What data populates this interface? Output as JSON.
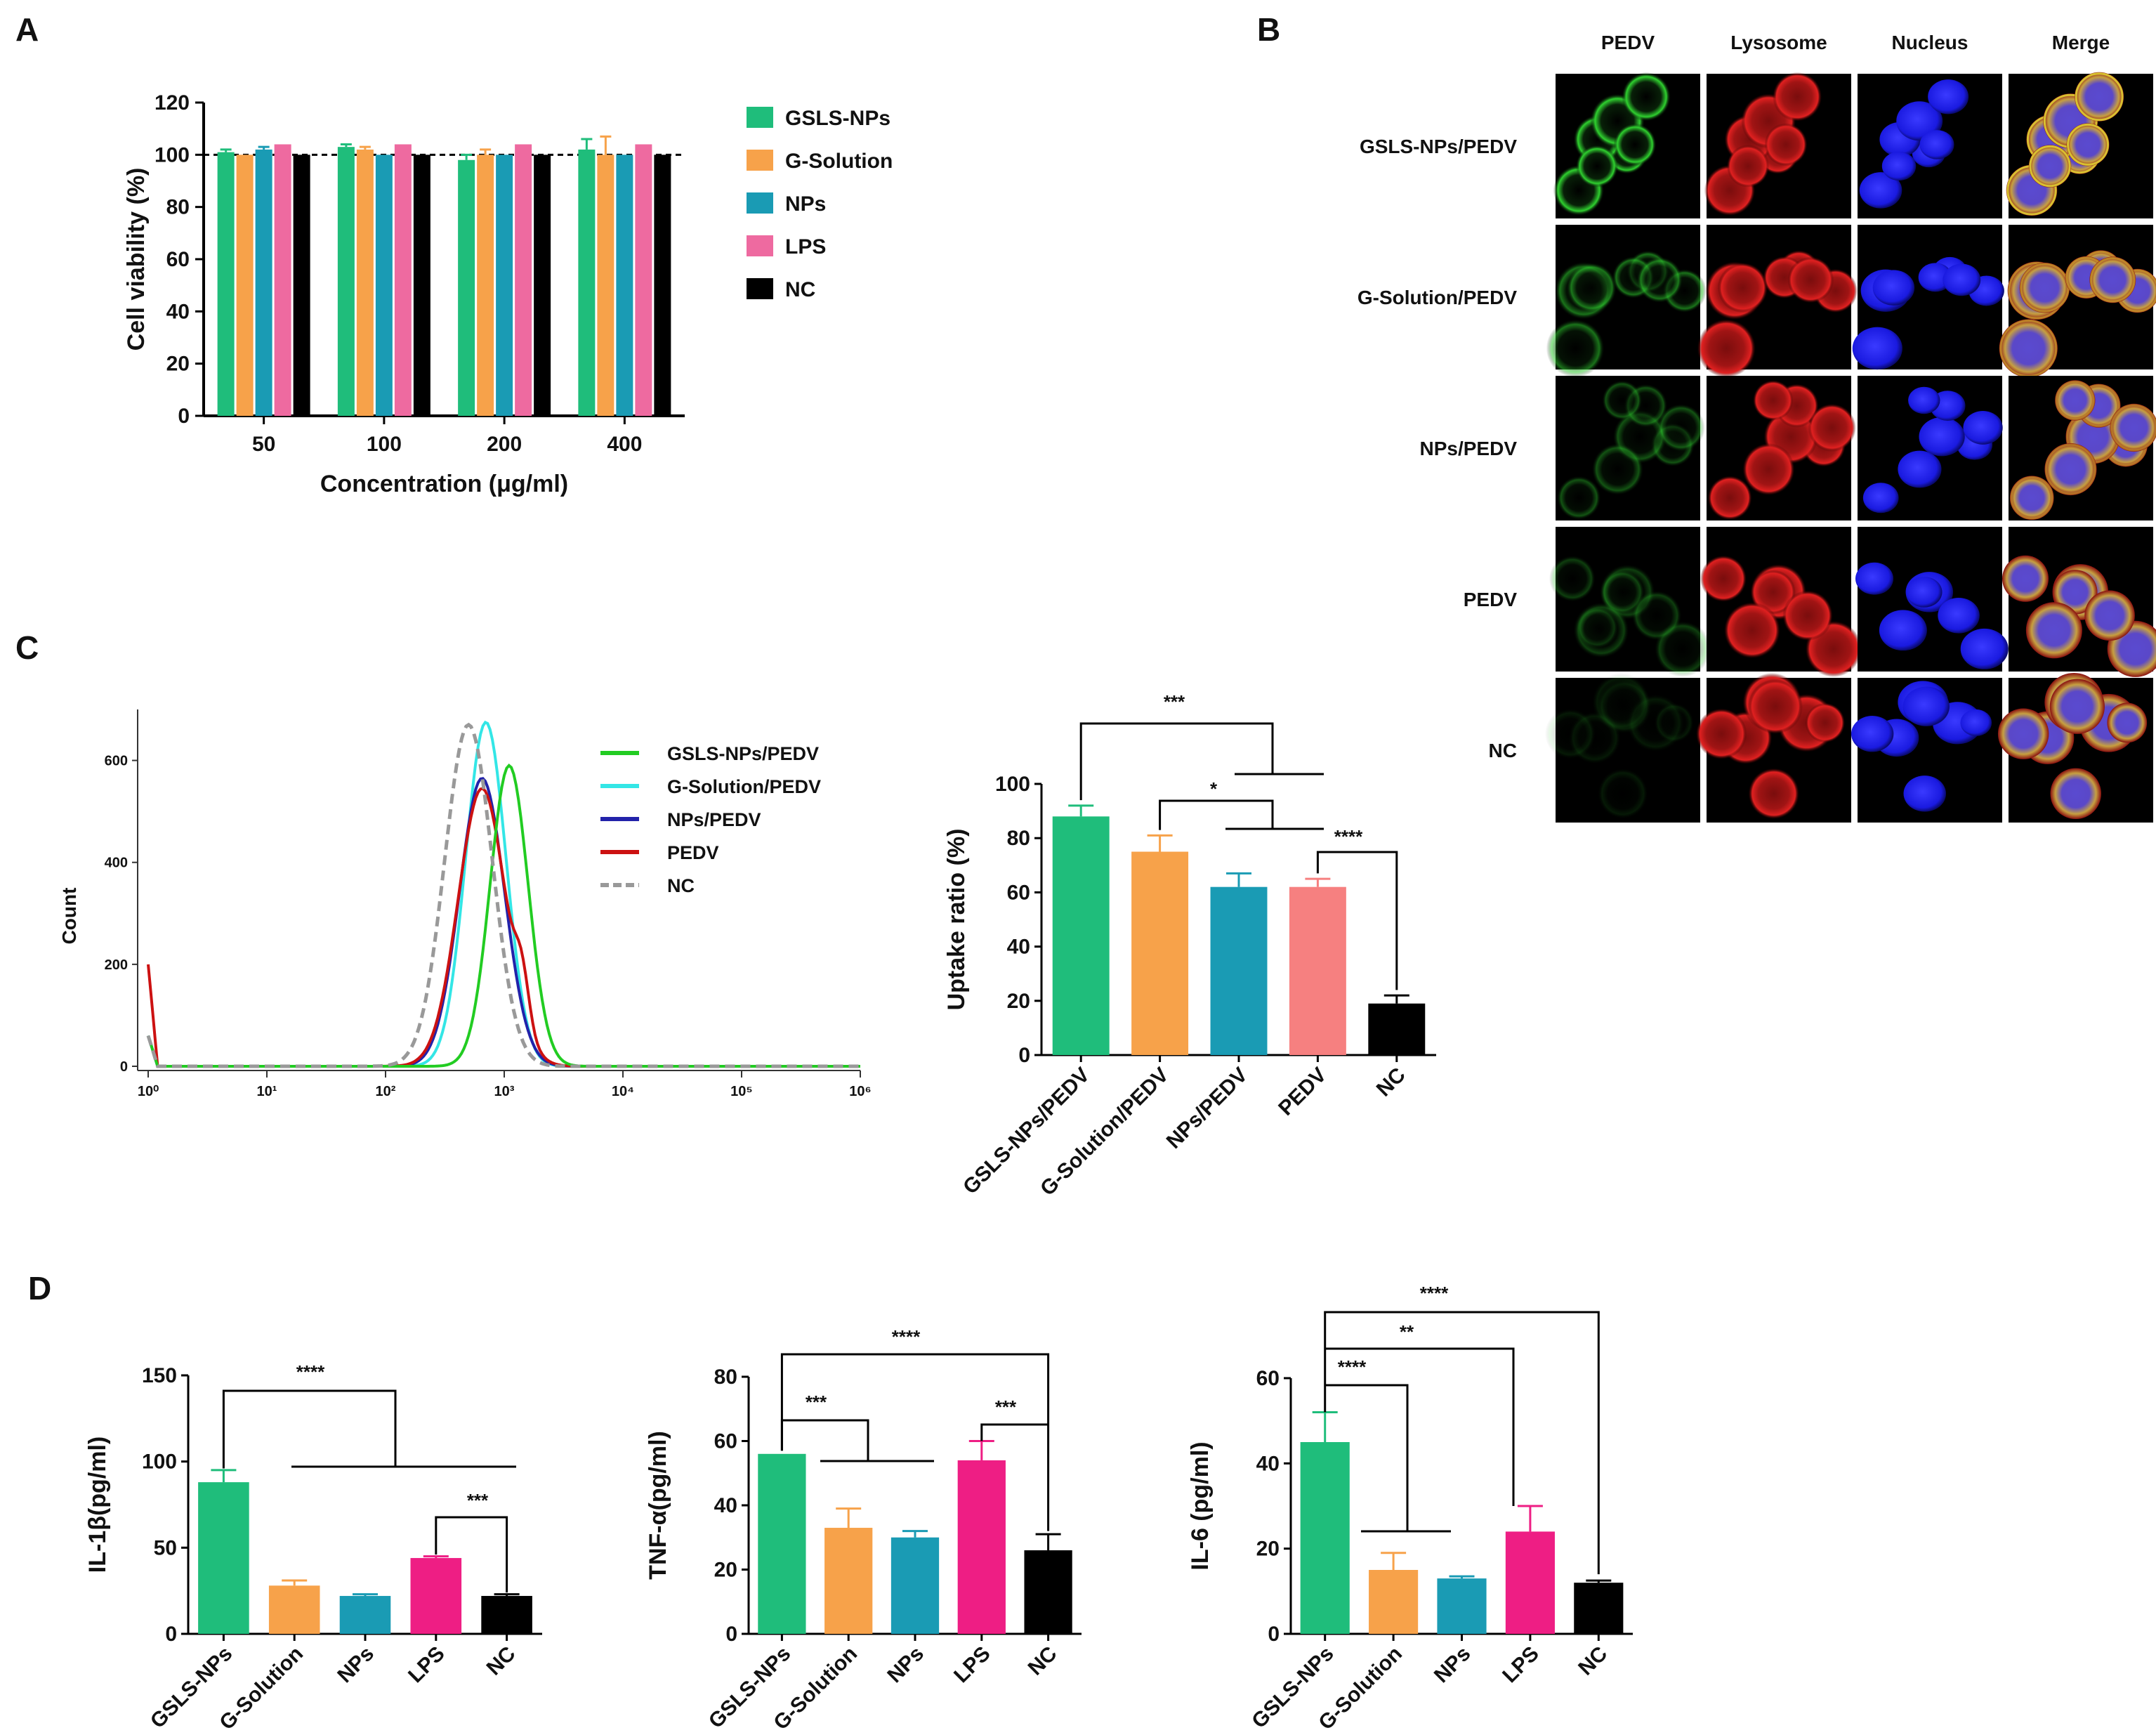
{
  "panel_labels": {
    "a": "A",
    "b": "B",
    "c": "C",
    "d": "D"
  },
  "colors": {
    "GSLS-NPs": "#1fbd7b",
    "G-Solution": "#f7a24a",
    "NPs": "#1a9bb4",
    "LPS_A": "#ee6aa0",
    "LPS_D": "#ee1e84",
    "NC": "#000000",
    "PEDV_C": "#f68080",
    "flow_GSLS": "#22cc22",
    "flow_GSol": "#33e6e6",
    "flow_NPs": "#2222aa",
    "flow_PEDV": "#cc1111",
    "flow_NC": "#999999"
  },
  "chart_data": [
    {
      "id": "A",
      "type": "bar",
      "categories": [
        "50",
        "100",
        "200",
        "400"
      ],
      "series": [
        {
          "name": "GSLS-NPs",
          "values": [
            101,
            103,
            98,
            102
          ],
          "errors": [
            1,
            1,
            2,
            4
          ]
        },
        {
          "name": "G-Solution",
          "values": [
            100,
            102,
            100,
            100
          ],
          "errors": [
            0,
            1,
            2,
            7
          ]
        },
        {
          "name": "NPs",
          "values": [
            102,
            100,
            100,
            100
          ],
          "errors": [
            1,
            0,
            0,
            0
          ]
        },
        {
          "name": "LPS",
          "values": [
            104,
            104,
            104,
            104
          ],
          "errors": [
            0,
            0,
            0,
            0
          ]
        },
        {
          "name": "NC",
          "values": [
            100,
            100,
            100,
            100
          ],
          "errors": [
            0,
            0,
            0,
            0
          ]
        }
      ],
      "xlabel": "Concentration (μg/ml)",
      "ylabel": "Cell viability (%)",
      "ylim": [
        0,
        120
      ],
      "yticks": [
        "0",
        "20",
        "40",
        "60",
        "80",
        "100",
        "120"
      ],
      "reference_line": 100,
      "legend_position": "right"
    },
    {
      "id": "C-flow",
      "type": "line",
      "xscale": "log",
      "xticks": [
        "10⁰",
        "10¹",
        "10²",
        "10³",
        "10⁴",
        "10⁵",
        "10⁶"
      ],
      "yticks": [
        "0",
        "200",
        "400",
        "600"
      ],
      "ylim": [
        0,
        700
      ],
      "ylabel": "Count",
      "series": [
        {
          "name": "GSLS-NPs/PEDV",
          "peak_x": 1100,
          "peak_y": 590
        },
        {
          "name": "G-Solution/PEDV",
          "peak_x": 700,
          "peak_y": 675
        },
        {
          "name": "NPs/PEDV",
          "peak_x": 650,
          "peak_y": 565
        },
        {
          "name": "PEDV",
          "peak_x": 650,
          "peak_y": 545
        },
        {
          "name": "NC",
          "peak_x": 500,
          "peak_y": 670
        }
      ],
      "legend_position": "top-right"
    },
    {
      "id": "C-bar",
      "type": "bar",
      "categories": [
        "GSLS-NPs/PEDV",
        "G-Solution/PEDV",
        "NPs/PEDV",
        "PEDV",
        "NC"
      ],
      "values": [
        88,
        75,
        62,
        62,
        19
      ],
      "errors": [
        4,
        6,
        5,
        3,
        3
      ],
      "ylabel": "Uptake ratio (%)",
      "ylim": [
        0,
        100
      ],
      "yticks": [
        "0",
        "20",
        "40",
        "60",
        "80",
        "100"
      ],
      "significance": [
        "***",
        "*",
        "****"
      ]
    },
    {
      "id": "D1",
      "type": "bar",
      "categories": [
        "GSLS-NPs",
        "G-Solution",
        "NPs",
        "LPS",
        "NC"
      ],
      "values": [
        88,
        28,
        22,
        44,
        22
      ],
      "errors": [
        7,
        3,
        1,
        1,
        1
      ],
      "ylabel": "IL-1β(pg/ml)",
      "ylim": [
        0,
        150
      ],
      "yticks": [
        "0",
        "50",
        "100",
        "150"
      ],
      "significance": [
        "****",
        "***"
      ]
    },
    {
      "id": "D2",
      "type": "bar",
      "categories": [
        "GSLS-NPs",
        "G-Solution",
        "NPs",
        "LPS",
        "NC"
      ],
      "values": [
        56,
        33,
        30,
        54,
        26
      ],
      "errors": [
        0,
        6,
        2,
        6,
        5
      ],
      "ylabel": "TNF-α(pg/ml)",
      "ylim": [
        0,
        80
      ],
      "yticks": [
        "0",
        "20",
        "40",
        "60",
        "80"
      ],
      "significance": [
        "****",
        "***",
        "***"
      ]
    },
    {
      "id": "D3",
      "type": "bar",
      "categories": [
        "GSLS-NPs",
        "G-Solution",
        "NPs",
        "LPS",
        "NC"
      ],
      "values": [
        45,
        15,
        13,
        24,
        12
      ],
      "errors": [
        7,
        4,
        0.5,
        6,
        0.5
      ],
      "ylabel": "IL-6 (pg/ml)",
      "ylim": [
        0,
        60
      ],
      "yticks": [
        "0",
        "20",
        "40",
        "60"
      ],
      "significance": [
        "****",
        "**",
        "****"
      ]
    }
  ],
  "microscopy": {
    "columns": [
      "PEDV",
      "Lysosome",
      "Nucleus",
      "Merge"
    ],
    "rows": [
      "GSLS-NPs/PEDV",
      "G-Solution/PEDV",
      "NPs/PEDV",
      "PEDV",
      "NC"
    ],
    "pedv_intensity": [
      1.0,
      0.55,
      0.4,
      0.3,
      0.12
    ]
  }
}
